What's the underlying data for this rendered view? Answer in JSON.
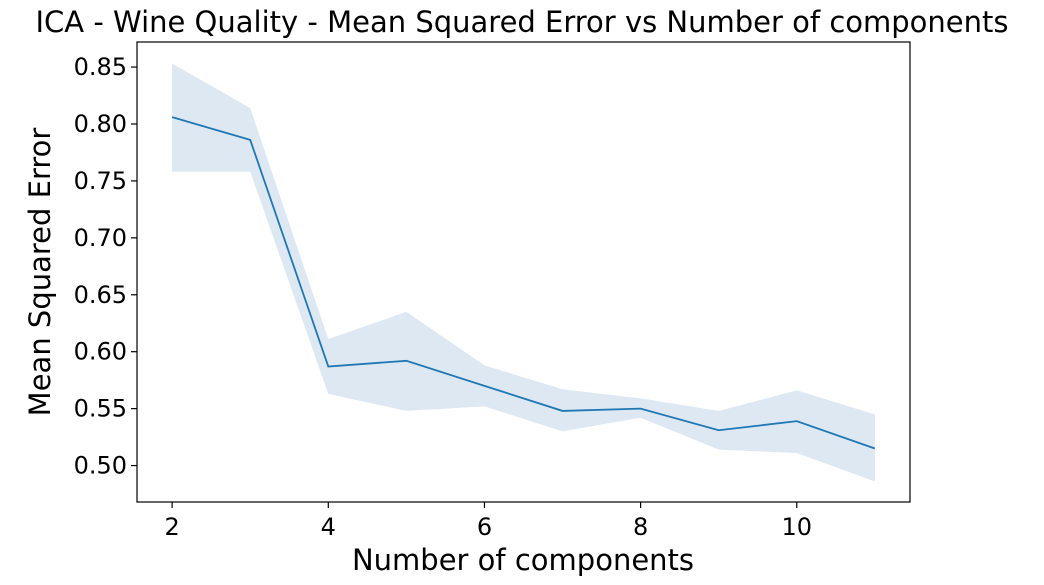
{
  "chart_data": {
    "type": "line",
    "title": "ICA - Wine Quality - Mean Squared Error vs Number of components",
    "xlabel": "Number of components",
    "ylabel": "Mean Squared Error",
    "xlim": [
      1.55,
      11.45
    ],
    "ylim": [
      0.468,
      0.872
    ],
    "xticks": [
      2,
      4,
      6,
      8,
      10
    ],
    "xtick_labels": [
      "2",
      "4",
      "6",
      "8",
      "10"
    ],
    "yticks": [
      0.5,
      0.55,
      0.6,
      0.65,
      0.7,
      0.75,
      0.8,
      0.85
    ],
    "ytick_labels": [
      "0.50",
      "0.55",
      "0.60",
      "0.65",
      "0.70",
      "0.75",
      "0.80",
      "0.85"
    ],
    "grid": false,
    "series": [
      {
        "x": [
          2,
          3,
          4,
          5,
          6,
          7,
          8,
          9,
          10,
          11
        ],
        "y": [
          0.806,
          0.786,
          0.587,
          0.592,
          0.57,
          0.548,
          0.55,
          0.531,
          0.539,
          0.515
        ],
        "band_lower": [
          0.758,
          0.758,
          0.563,
          0.548,
          0.552,
          0.53,
          0.542,
          0.514,
          0.511,
          0.486
        ],
        "band_upper": [
          0.853,
          0.814,
          0.611,
          0.635,
          0.588,
          0.567,
          0.559,
          0.548,
          0.566,
          0.545
        ],
        "color": "#1f77b4",
        "band_color": "#dde8f3"
      }
    ]
  }
}
